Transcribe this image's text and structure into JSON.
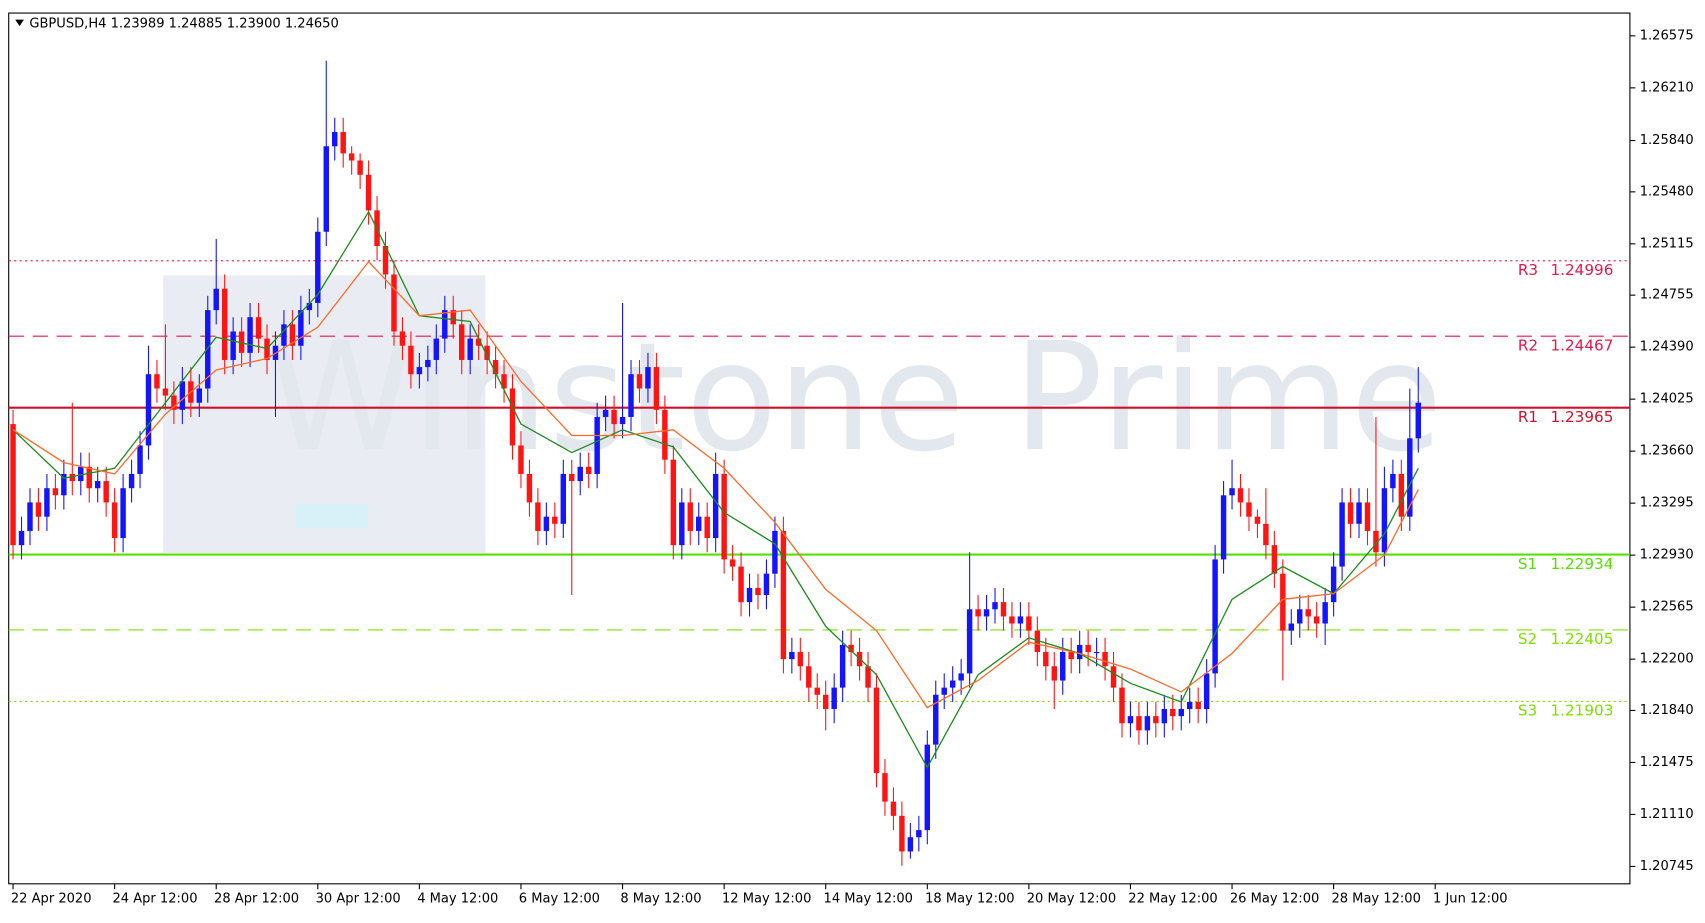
{
  "chart_data": {
    "type": "candlestick",
    "header": "GBPUSD,H4  1.23989 1.24885 1.23900 1.24650",
    "watermark": "Winstone Prime",
    "up_color": "#1414ff",
    "down_color": "#ff1414",
    "categories": [
      "22 Apr 2020",
      null,
      null,
      null,
      null,
      null,
      null,
      null,
      null,
      null,
      null,
      null,
      "24 Apr 12:00",
      null,
      null,
      null,
      null,
      null,
      null,
      null,
      null,
      null,
      null,
      null,
      "28 Apr 12:00",
      null,
      null,
      null,
      null,
      null,
      null,
      null,
      null,
      null,
      null,
      null,
      "30 Apr 12:00",
      null,
      null,
      null,
      null,
      null,
      null,
      null,
      null,
      null,
      null,
      null,
      "4 May 12:00",
      null,
      null,
      null,
      null,
      null,
      null,
      null,
      null,
      null,
      null,
      null,
      "6 May 12:00",
      null,
      null,
      null,
      null,
      null,
      null,
      null,
      null,
      null,
      null,
      null,
      "8 May 12:00",
      null,
      null,
      null,
      null,
      null,
      null,
      null,
      null,
      null,
      null,
      null,
      "12 May 12:00",
      null,
      null,
      null,
      null,
      null,
      null,
      null,
      null,
      null,
      null,
      null,
      "14 May 12:00",
      null,
      null,
      null,
      null,
      null,
      null,
      null,
      null,
      null,
      null,
      null,
      "18 May 12:00",
      null,
      null,
      null,
      null,
      null,
      null,
      null,
      null,
      null,
      null,
      null,
      "20 May 12:00",
      null,
      null,
      null,
      null,
      null,
      null,
      null,
      null,
      null,
      null,
      null,
      "22 May 12:00",
      null,
      null,
      null,
      null,
      null,
      null,
      null,
      null,
      null,
      null,
      null,
      "26 May 12:00",
      null,
      null,
      null,
      null,
      null,
      null,
      null,
      null,
      null,
      null,
      null,
      "28 May 12:00",
      null,
      null,
      null,
      null,
      null,
      null,
      null,
      null,
      null,
      null,
      null,
      "1 Jun 12:00"
    ],
    "open": [
      1.2385,
      1.23,
      1.231,
      1.233,
      1.232,
      1.234,
      1.2335,
      1.235,
      1.2345,
      1.2355,
      1.234,
      1.2345,
      1.233,
      1.2305,
      1.234,
      1.235,
      1.237,
      1.242,
      1.241,
      1.2405,
      1.2395,
      1.2415,
      1.24,
      1.241,
      1.2465,
      1.248,
      1.243,
      1.245,
      1.2435,
      1.246,
      1.2445,
      1.243,
      1.244,
      1.2455,
      1.244,
      1.2465,
      1.247,
      1.252,
      1.258,
      1.259,
      1.2575,
      1.257,
      1.256,
      1.2535,
      1.251,
      1.249,
      1.245,
      1.244,
      1.242,
      1.2425,
      1.243,
      1.2445,
      1.2465,
      1.2455,
      1.243,
      1.2445,
      1.244,
      1.243,
      1.242,
      1.241,
      1.237,
      1.235,
      1.233,
      1.231,
      1.232,
      1.2315,
      1.235,
      1.2345,
      1.2355,
      1.235,
      1.239,
      1.2395,
      1.2385,
      1.239,
      1.242,
      1.241,
      1.2425,
      1.2395,
      1.236,
      1.23,
      1.233,
      1.231,
      1.232,
      1.2305,
      1.235,
      1.229,
      1.2285,
      1.226,
      1.227,
      1.2265,
      1.228,
      1.231,
      1.222,
      1.2225,
      1.2215,
      1.22,
      1.2195,
      1.2185,
      1.22,
      1.223,
      1.2225,
      1.2215,
      1.22,
      1.214,
      1.212,
      1.211,
      1.2085,
      1.2095,
      1.21,
      1.216,
      1.2195,
      1.22,
      1.2205,
      1.221,
      1.2255,
      1.225,
      1.2255,
      1.226,
      1.225,
      1.2245,
      1.225,
      1.224,
      1.2225,
      1.2215,
      1.2205,
      1.2225,
      1.222,
      1.223,
      1.2225,
      1.2225,
      1.2215,
      1.22,
      1.2175,
      1.218,
      1.217,
      1.218,
      1.2175,
      1.2185,
      1.218,
      1.2185,
      1.219,
      1.2185,
      1.221,
      1.229,
      1.2335,
      1.234,
      1.233,
      1.232,
      1.2315,
      1.23,
      1.228,
      1.224,
      1.2245,
      1.2255,
      1.225,
      1.2245,
      1.226,
      1.2285,
      1.233,
      1.2315,
      1.233,
      1.231,
      1.2295,
      1.234,
      1.235,
      1.232,
      1.2375,
      null,
      null
    ],
    "high": [
      1.2395,
      1.232,
      1.234,
      1.234,
      1.235,
      1.235,
      1.236,
      1.24,
      1.2365,
      1.2365,
      1.2355,
      1.2355,
      1.234,
      1.235,
      1.236,
      1.238,
      1.244,
      1.243,
      1.2455,
      1.2415,
      1.2425,
      1.2425,
      1.242,
      1.2475,
      1.2515,
      1.249,
      1.246,
      1.246,
      1.247,
      1.247,
      1.2455,
      1.245,
      1.2465,
      1.2465,
      1.2475,
      1.248,
      1.253,
      1.264,
      1.26,
      1.26,
      1.258,
      1.2575,
      1.257,
      1.2545,
      1.252,
      1.25,
      1.246,
      1.245,
      1.2435,
      1.244,
      1.2455,
      1.2475,
      1.2475,
      1.2465,
      1.2455,
      1.2455,
      1.245,
      1.244,
      1.243,
      1.242,
      1.238,
      1.236,
      1.234,
      1.233,
      1.233,
      1.236,
      1.236,
      1.2365,
      1.2365,
      1.24,
      1.2405,
      1.2405,
      1.247,
      1.243,
      1.243,
      1.2435,
      1.2435,
      1.2405,
      1.237,
      1.234,
      1.234,
      1.233,
      1.233,
      1.2365,
      1.236,
      1.23,
      1.2295,
      1.228,
      1.228,
      1.229,
      1.232,
      1.232,
      1.2235,
      1.2235,
      1.2225,
      1.221,
      1.2205,
      1.221,
      1.224,
      1.224,
      1.2235,
      1.2225,
      1.221,
      1.215,
      1.213,
      1.212,
      1.2105,
      1.211,
      1.217,
      1.2205,
      1.221,
      1.2215,
      1.222,
      1.2295,
      1.2265,
      1.2265,
      1.227,
      1.227,
      1.226,
      1.226,
      1.226,
      1.225,
      1.2235,
      1.2225,
      1.2235,
      1.2235,
      1.224,
      1.224,
      1.2235,
      1.2235,
      1.2225,
      1.221,
      1.219,
      1.219,
      1.219,
      1.219,
      1.2195,
      1.2195,
      1.2195,
      1.22,
      1.22,
      1.222,
      1.23,
      1.2345,
      1.236,
      1.235,
      1.234,
      1.2325,
      1.234,
      1.231,
      1.229,
      1.2255,
      1.2265,
      1.2265,
      1.226,
      1.227,
      1.2295,
      1.234,
      1.234,
      1.234,
      1.234,
      1.239,
      1.2355,
      1.236,
      1.236,
      1.241,
      1.2425,
      null,
      null
    ],
    "low": [
      1.229,
      1.229,
      1.23,
      1.231,
      1.231,
      1.2325,
      1.2325,
      1.2335,
      1.2335,
      1.233,
      1.233,
      1.232,
      1.2295,
      1.2295,
      1.233,
      1.234,
      1.236,
      1.24,
      1.2395,
      1.2385,
      1.2385,
      1.239,
      1.239,
      1.24,
      1.2455,
      1.242,
      1.242,
      1.2425,
      1.2425,
      1.2435,
      1.242,
      1.239,
      1.243,
      1.243,
      1.243,
      1.2455,
      1.246,
      1.251,
      1.257,
      1.2565,
      1.256,
      1.255,
      1.2525,
      1.25,
      1.248,
      1.244,
      1.243,
      1.241,
      1.241,
      1.2415,
      1.242,
      1.2435,
      1.2445,
      1.242,
      1.242,
      1.243,
      1.242,
      1.241,
      1.24,
      1.236,
      1.234,
      1.232,
      1.23,
      1.23,
      1.2305,
      1.2305,
      1.2265,
      1.2335,
      1.234,
      1.234,
      1.238,
      1.2375,
      1.2375,
      1.238,
      1.24,
      1.24,
      1.2385,
      1.235,
      1.229,
      1.229,
      1.23,
      1.23,
      1.2295,
      1.2295,
      1.228,
      1.2275,
      1.225,
      1.225,
      1.2255,
      1.2255,
      1.227,
      1.221,
      1.221,
      1.2205,
      1.219,
      1.2185,
      1.217,
      1.2175,
      1.219,
      1.2215,
      1.2205,
      1.219,
      1.213,
      1.211,
      1.21,
      1.2075,
      1.208,
      1.2085,
      1.209,
      1.215,
      1.2185,
      1.219,
      1.2195,
      1.22,
      1.224,
      1.224,
      1.2245,
      1.224,
      1.2235,
      1.2235,
      1.223,
      1.2215,
      1.2205,
      1.2185,
      1.2195,
      1.221,
      1.221,
      1.2215,
      1.2215,
      1.2205,
      1.219,
      1.2165,
      1.2165,
      1.216,
      1.216,
      1.2165,
      1.2165,
      1.217,
      1.217,
      1.2175,
      1.2175,
      1.2175,
      1.22,
      1.228,
      1.2325,
      1.232,
      1.231,
      1.2305,
      1.229,
      1.227,
      1.2205,
      1.223,
      1.2235,
      1.224,
      1.2235,
      1.223,
      1.225,
      1.2275,
      1.2305,
      1.2305,
      1.23,
      1.2285,
      1.2285,
      1.233,
      1.231,
      1.231,
      1.2365,
      null,
      null
    ],
    "close": [
      1.23,
      1.231,
      1.233,
      1.232,
      1.234,
      1.2335,
      1.235,
      1.2345,
      1.2355,
      1.234,
      1.2345,
      1.233,
      1.2305,
      1.234,
      1.235,
      1.237,
      1.242,
      1.241,
      1.2405,
      1.2395,
      1.2415,
      1.24,
      1.241,
      1.2465,
      1.248,
      1.243,
      1.245,
      1.2435,
      1.246,
      1.2445,
      1.243,
      1.244,
      1.2455,
      1.244,
      1.2465,
      1.247,
      1.252,
      1.258,
      1.259,
      1.2575,
      1.257,
      1.256,
      1.2535,
      1.251,
      1.249,
      1.245,
      1.244,
      1.242,
      1.2425,
      1.243,
      1.2445,
      1.2465,
      1.2455,
      1.243,
      1.2445,
      1.244,
      1.243,
      1.242,
      1.241,
      1.237,
      1.235,
      1.233,
      1.231,
      1.232,
      1.2315,
      1.235,
      1.2345,
      1.2355,
      1.235,
      1.239,
      1.2395,
      1.2385,
      1.239,
      1.242,
      1.241,
      1.2425,
      1.2395,
      1.236,
      1.23,
      1.233,
      1.231,
      1.232,
      1.2305,
      1.235,
      1.229,
      1.2285,
      1.226,
      1.227,
      1.2265,
      1.228,
      1.231,
      1.222,
      1.2225,
      1.2215,
      1.22,
      1.2195,
      1.2185,
      1.22,
      1.223,
      1.2225,
      1.2215,
      1.22,
      1.214,
      1.212,
      1.211,
      1.2085,
      1.2095,
      1.21,
      1.216,
      1.2195,
      1.22,
      1.2205,
      1.221,
      1.2255,
      1.225,
      1.2255,
      1.226,
      1.225,
      1.2245,
      1.225,
      1.224,
      1.2225,
      1.2215,
      1.2205,
      1.2225,
      1.222,
      1.223,
      1.2225,
      1.2225,
      1.2215,
      1.22,
      1.2175,
      1.218,
      1.217,
      1.218,
      1.2175,
      1.2185,
      1.218,
      1.2185,
      1.219,
      1.2185,
      1.221,
      1.229,
      1.2335,
      1.234,
      1.233,
      1.232,
      1.2315,
      1.23,
      1.228,
      1.224,
      1.2245,
      1.2255,
      1.225,
      1.2245,
      1.226,
      1.2285,
      1.233,
      1.2315,
      1.233,
      1.231,
      1.2295,
      1.234,
      1.235,
      1.232,
      1.2375,
      1.24,
      null,
      null
    ],
    "lines": [
      {
        "color": "#1e8c1e",
        "x": [
          0,
          6,
          12,
          18,
          24,
          30,
          36,
          42,
          48,
          54,
          60,
          66,
          72,
          78,
          84,
          90,
          96,
          102,
          108,
          114,
          120,
          126,
          132,
          138,
          144,
          150,
          156,
          162,
          166
        ],
        "values": [
          1.2381,
          1.2347,
          1.2354,
          1.24,
          1.2446,
          1.2438,
          1.2476,
          1.2534,
          1.2461,
          1.2457,
          1.2385,
          1.2365,
          1.2381,
          1.2369,
          1.2323,
          1.2301,
          1.2243,
          1.2209,
          1.2144,
          1.2209,
          1.2235,
          1.2224,
          1.2203,
          1.219,
          1.2262,
          1.2285,
          1.2266,
          1.2308,
          1.2354
        ]
      },
      {
        "color": "#ff6a28",
        "x": [
          0,
          6,
          12,
          18,
          24,
          30,
          36,
          42,
          48,
          54,
          60,
          66,
          72,
          78,
          84,
          90,
          96,
          102,
          108,
          114,
          120,
          126,
          132,
          138,
          144,
          150,
          156,
          162,
          166
        ],
        "values": [
          1.2381,
          1.2358,
          1.235,
          1.2392,
          1.2423,
          1.2431,
          1.2453,
          1.2499,
          1.2461,
          1.2465,
          1.2415,
          1.2377,
          1.2377,
          1.2381,
          1.2354,
          1.2316,
          1.2269,
          1.224,
          1.2186,
          1.2205,
          1.2232,
          1.2224,
          1.2213,
          1.2197,
          1.2224,
          1.2262,
          1.2266,
          1.2293,
          1.2339
        ]
      }
    ],
    "levels": [
      {
        "name": "R3",
        "value": 1.24996,
        "color": "#e8174a",
        "style": "dotted"
      },
      {
        "name": "R2",
        "value": 1.24467,
        "color": "#e8174a",
        "style": "dashed"
      },
      {
        "name": "R1",
        "value": 1.23965,
        "color": "#d0102a",
        "style": "solid"
      },
      {
        "name": "S1",
        "value": 1.22934,
        "color": "#55e000",
        "style": "solid"
      },
      {
        "name": "S2",
        "value": 1.22405,
        "color": "#7fe000",
        "style": "dashed"
      },
      {
        "name": "S3",
        "value": 1.21903,
        "color": "#7fe000",
        "style": "dotted"
      }
    ],
    "ylim": [
      1.20623,
      1.26735
    ],
    "yticks": [
      1.26575,
      {
        "value": 1.2621,
        "label": "1.26210"
      },
      {
        "value": 1.2584,
        "label": "1.25840"
      },
      {
        "value": 1.2548,
        "label": "1.25480"
      },
      1.25115,
      1.24755,
      {
        "value": 1.2439,
        "label": "1.24390"
      },
      1.24025,
      {
        "value": 1.2366,
        "label": "1.23660"
      },
      1.23295,
      {
        "value": 1.2293,
        "label": "1.22930"
      },
      1.22565,
      {
        "value": 1.222,
        "label": "1.22200"
      },
      {
        "value": 1.2184,
        "label": "1.21840"
      },
      1.21475,
      {
        "value": 1.2111,
        "label": "1.21110"
      },
      1.20745
    ]
  }
}
